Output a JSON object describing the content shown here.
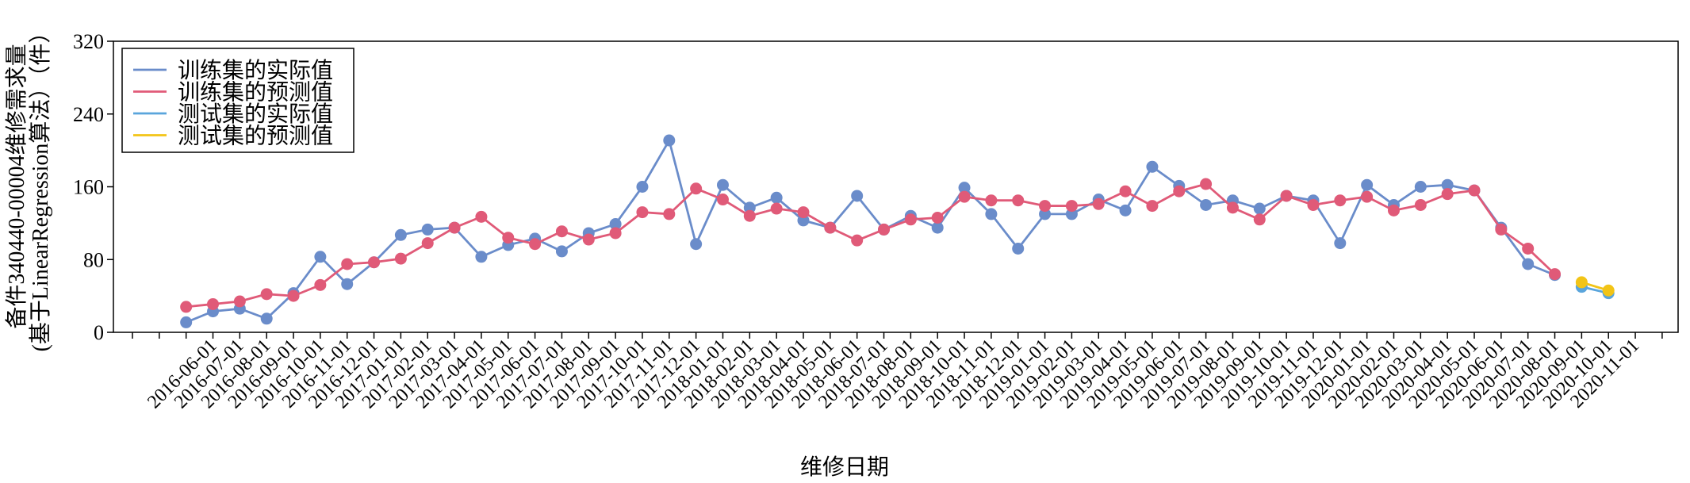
{
  "chart_data": {
    "type": "line",
    "xlabel": "维修日期",
    "ylabel": [
      "备件340440-00004维修需求量",
      "(基于LinearRegression算法）（件）"
    ],
    "categories": [
      null,
      null,
      null,
      "2016-06-01",
      "2016-07-01",
      "2016-08-01",
      "2016-09-01",
      "2016-10-01",
      "2016-11-01",
      "2016-12-01",
      "2017-01-01",
      "2017-02-01",
      "2017-03-01",
      "2017-04-01",
      "2017-05-01",
      "2017-06-01",
      "2017-07-01",
      "2017-08-01",
      "2017-09-01",
      "2017-10-01",
      "2017-11-01",
      "2017-12-01",
      "2018-01-01",
      "2018-02-01",
      "2018-03-01",
      "2018-04-01",
      "2018-05-01",
      "2018-06-01",
      "2018-07-01",
      "2018-08-01",
      "2018-09-01",
      "2018-10-01",
      "2018-11-01",
      "2018-12-01",
      "2019-01-01",
      "2019-02-01",
      "2019-03-01",
      "2019-04-01",
      "2019-05-01",
      "2019-06-01",
      "2019-07-01",
      "2019-08-01",
      "2019-09-01",
      "2019-10-01",
      "2019-11-01",
      "2019-12-01",
      "2020-01-01",
      "2020-02-01",
      "2020-03-01",
      "2020-04-01",
      "2020-05-01",
      "2020-06-01",
      "2020-07-01",
      "2020-08-01",
      "2020-09-01",
      "2020-10-01",
      "2020-11-01",
      null
    ],
    "series": [
      {
        "name": "训练集的实际值",
        "color": "#6a8cca",
        "values": [
          null,
          null,
          11,
          23,
          26,
          15,
          43,
          83,
          53,
          77,
          107,
          113,
          115,
          83,
          96,
          103,
          89,
          109,
          119,
          160,
          211,
          97,
          162,
          137,
          148,
          123,
          115,
          150,
          113,
          128,
          115,
          159,
          130,
          92,
          130,
          130,
          146,
          134,
          182,
          161,
          140,
          145,
          136,
          150,
          145,
          98,
          162,
          140,
          160,
          162,
          156,
          115,
          75,
          63,
          null,
          null,
          null,
          null
        ]
      },
      {
        "name": "训练集的预测值",
        "color": "#e05a78",
        "values": [
          null,
          null,
          28,
          31,
          34,
          42,
          40,
          52,
          75,
          77,
          81,
          98,
          115,
          127,
          104,
          97,
          111,
          102,
          109,
          132,
          130,
          158,
          146,
          128,
          136,
          132,
          115,
          101,
          113,
          124,
          126,
          149,
          145,
          145,
          139,
          139,
          141,
          155,
          139,
          155,
          163,
          137,
          124,
          150,
          140,
          145,
          149,
          134,
          140,
          152,
          156,
          113,
          92,
          64,
          null,
          null,
          null,
          null
        ]
      },
      {
        "name": "测试集的实际值",
        "color": "#5aa5dc",
        "values": [
          null,
          null,
          null,
          null,
          null,
          null,
          null,
          null,
          null,
          null,
          null,
          null,
          null,
          null,
          null,
          null,
          null,
          null,
          null,
          null,
          null,
          null,
          null,
          null,
          null,
          null,
          null,
          null,
          null,
          null,
          null,
          null,
          null,
          null,
          null,
          null,
          null,
          null,
          null,
          null,
          null,
          null,
          null,
          null,
          null,
          null,
          null,
          null,
          null,
          null,
          null,
          null,
          null,
          null,
          50,
          43,
          null,
          null
        ]
      },
      {
        "name": "测试集的预测值",
        "color": "#f2c417",
        "values": [
          null,
          null,
          null,
          null,
          null,
          null,
          null,
          null,
          null,
          null,
          null,
          null,
          null,
          null,
          null,
          null,
          null,
          null,
          null,
          null,
          null,
          null,
          null,
          null,
          null,
          null,
          null,
          null,
          null,
          null,
          null,
          null,
          null,
          null,
          null,
          null,
          null,
          null,
          null,
          null,
          null,
          null,
          null,
          null,
          null,
          null,
          null,
          null,
          null,
          null,
          null,
          null,
          null,
          null,
          55,
          46,
          null,
          null
        ]
      }
    ],
    "ylim": [
      0,
      320
    ],
    "yticks": [
      0,
      80,
      160,
      240,
      320
    ],
    "grid": false,
    "legend": "upper left"
  }
}
